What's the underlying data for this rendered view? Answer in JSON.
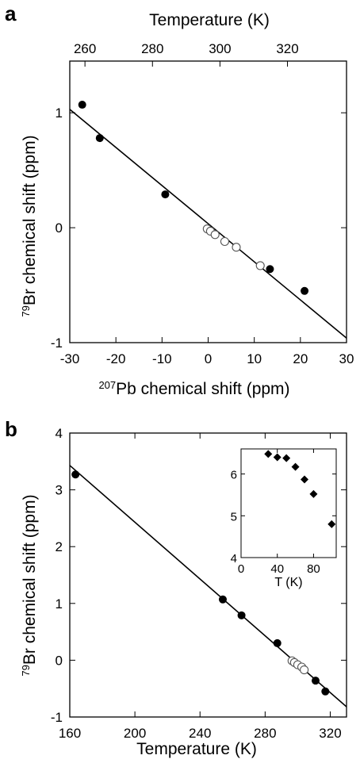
{
  "chart_data": [
    {
      "panel": "a",
      "type": "scatter",
      "xlabel_sup": "207",
      "xlabel": "Pb chemical shift  (ppm)",
      "ylabel_sup": "79",
      "ylabel": "Br chemical shift  (ppm)",
      "top_xlabel": "Temperature  (K)",
      "xlim": [
        -30,
        30
      ],
      "ylim": [
        -1,
        1.45
      ],
      "xticks": [
        -30,
        -20,
        -10,
        0,
        10,
        20,
        30
      ],
      "xtick_labels": [
        "-30",
        "-20",
        "-10",
        "0",
        "10",
        "20",
        "30"
      ],
      "yticks": [
        -1,
        0,
        1
      ],
      "ytick_labels": [
        "-1",
        "0",
        "1"
      ],
      "top_xticks": [
        260,
        280,
        300,
        320
      ],
      "top_xtick_labels": [
        "260",
        "280",
        "300",
        "320"
      ],
      "top_xlim": [
        255.5,
        337.5
      ],
      "series": [
        {
          "marker": "filled-circle",
          "x": [
            -27.3,
            -23.5,
            -9.3,
            13.4,
            20.9
          ],
          "y": [
            1.07,
            0.78,
            0.29,
            -0.36,
            -0.55
          ]
        },
        {
          "marker": "open-circle",
          "x": [
            -0.2,
            0.5,
            1.5,
            3.6,
            6.1,
            11.3
          ],
          "y": [
            -0.01,
            -0.03,
            -0.06,
            -0.12,
            -0.17,
            -0.33
          ]
        }
      ],
      "fit_line": {
        "x": [
          -30,
          30
        ],
        "y": [
          1.03,
          -0.96
        ]
      }
    },
    {
      "panel": "b",
      "type": "scatter",
      "xlabel": "Temperature (K)",
      "ylabel_sup": "79",
      "ylabel": "Br chemical shift  (ppm)",
      "xlim": [
        160,
        330
      ],
      "ylim": [
        -1,
        4
      ],
      "xticks": [
        160,
        200,
        240,
        280,
        320
      ],
      "xtick_labels": [
        "160",
        "200",
        "240",
        "280",
        "320"
      ],
      "yticks": [
        -1,
        0,
        1,
        2,
        3,
        4
      ],
      "ytick_labels": [
        "-1",
        "0",
        "1",
        "2",
        "3",
        "4"
      ],
      "series": [
        {
          "marker": "filled-circle",
          "x": [
            163.5,
            254,
            265.5,
            287.5,
            311,
            317
          ],
          "y": [
            3.27,
            1.07,
            0.79,
            0.3,
            -0.36,
            -0.55
          ]
        },
        {
          "marker": "open-circle",
          "x": [
            296.5,
            298,
            300,
            302.5,
            304
          ],
          "y": [
            -0.01,
            -0.04,
            -0.08,
            -0.12,
            -0.17
          ]
        }
      ],
      "fit_line": {
        "x": [
          160,
          330
        ],
        "y": [
          3.43,
          -0.82
        ]
      },
      "inset": {
        "type": "scatter",
        "xlabel": "T  (K)",
        "xlim": [
          0,
          105
        ],
        "ylim": [
          4,
          6.6
        ],
        "xticks": [
          0,
          40,
          80
        ],
        "xtick_labels": [
          "0",
          "40",
          "80"
        ],
        "yticks": [
          4,
          5,
          6
        ],
        "ytick_labels": [
          "4",
          "5",
          "6"
        ],
        "series": [
          {
            "marker": "filled-diamond",
            "x": [
              30,
              40,
              50,
              60,
              70,
              80,
              100
            ],
            "y": [
              6.48,
              6.4,
              6.38,
              6.17,
              5.87,
              5.52,
              4.8
            ]
          }
        ]
      }
    }
  ]
}
